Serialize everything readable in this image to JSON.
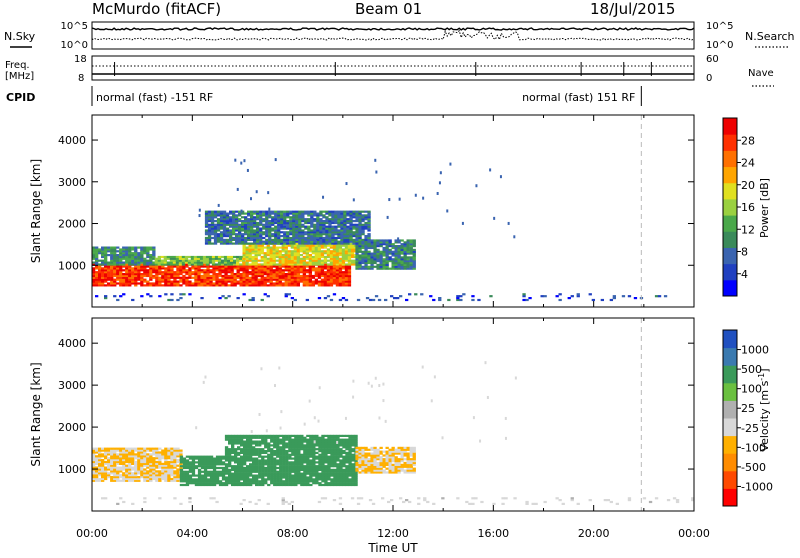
{
  "header": {
    "title": "McMurdo (fitACF)",
    "beam": "Beam 01",
    "date": "18/Jul/2015"
  },
  "status_panels": {
    "nsky_label": "N.Sky",
    "nsearch_label": "N.Search",
    "noise_ticks_left": [
      "10^5",
      "10^0"
    ],
    "noise_ticks_right": [
      "10^5",
      "10^0"
    ],
    "freq_label": "Freq.",
    "freq_unit": "[MHz]",
    "freq_ticks": [
      "18",
      "8"
    ],
    "nave_label": "Nave",
    "nave_ticks": [
      "60",
      "0"
    ],
    "cpid_label": "CPID",
    "cpid_segments": [
      {
        "text": "normal (fast) -151 RF",
        "start_hour": 0,
        "end_hour": 21.9
      },
      {
        "text": "normal (fast) 151 RF",
        "start_hour": 21.9,
        "end_hour": 24
      }
    ]
  },
  "x_axis": {
    "label": "Time UT",
    "ticks": [
      "00:00",
      "04:00",
      "08:00",
      "12:00",
      "16:00",
      "20:00",
      "00:00"
    ]
  },
  "colorbars": {
    "power": {
      "title": "Power [dB]",
      "ticks": [
        "28",
        "24",
        "20",
        "16",
        "12",
        "8",
        "4"
      ],
      "colors": [
        "#0000ff",
        "#2040c0",
        "#3a64b0",
        "#3a8a5a",
        "#4aa84a",
        "#9ad040",
        "#e0e020",
        "#ffa500",
        "#ff7000",
        "#ff3000",
        "#ee0000"
      ]
    },
    "velocity": {
      "title": "Velocity [m s",
      "title_sup": "-1",
      "title_end": "]",
      "ticks": [
        "1000",
        "500",
        "100",
        "25",
        "-25",
        "-100",
        "-500",
        "-1000"
      ],
      "colors": [
        "#ff0000",
        "#ff4a00",
        "#ff8c00",
        "#ffb000",
        "#d8d8d8",
        "#b0b0b0",
        "#6ac040",
        "#3a9a5a",
        "#3a7ab0",
        "#2050c0"
      ]
    }
  },
  "chart_data": [
    {
      "type": "heatmap",
      "title": "Power [dB]",
      "xlabel": "Time UT",
      "ylabel": "Slant Range [km]",
      "x_unit": "hours UT",
      "xlim": [
        0,
        24
      ],
      "ylim": [
        0,
        4600
      ],
      "y_ticks": [
        1000,
        2000,
        3000,
        4000
      ],
      "grid": false,
      "marker_line_hour": 21.9,
      "regions": [
        {
          "t0": 0.0,
          "t1": 10.2,
          "r0": 500,
          "r1": 1000,
          "value": 27
        },
        {
          "t0": 0.0,
          "t1": 2.5,
          "r0": 1000,
          "r1": 1450,
          "value": 10
        },
        {
          "t0": 2.5,
          "t1": 6.0,
          "r0": 1000,
          "r1": 1200,
          "value": 14
        },
        {
          "t0": 6.0,
          "t1": 10.5,
          "r0": 1000,
          "r1": 1500,
          "value": 18
        },
        {
          "t0": 10.5,
          "t1": 12.8,
          "r0": 900,
          "r1": 1600,
          "value": 9
        },
        {
          "t0": 4.5,
          "t1": 11.0,
          "r0": 1500,
          "r1": 2300,
          "value": 8
        },
        {
          "t0": 0.0,
          "t1": 24.0,
          "r0": 150,
          "r1": 300,
          "value": 5
        }
      ]
    },
    {
      "type": "heatmap",
      "title": "Velocity [m s-1]",
      "xlabel": "Time UT",
      "ylabel": "Slant Range [km]",
      "x_unit": "hours UT",
      "xlim": [
        0,
        24
      ],
      "ylim": [
        0,
        4600
      ],
      "y_ticks": [
        1000,
        2000,
        3000,
        4000
      ],
      "grid": false,
      "marker_line_hour": 21.9,
      "regions": [
        {
          "t0": 0.0,
          "t1": 3.5,
          "r0": 700,
          "r1": 1500,
          "value": -100
        },
        {
          "t0": 3.5,
          "t1": 5.3,
          "r0": 600,
          "r1": 1300,
          "value": 150
        },
        {
          "t0": 5.3,
          "t1": 10.5,
          "r0": 600,
          "r1": 1800,
          "value": 200
        },
        {
          "t0": 10.5,
          "t1": 12.8,
          "r0": 900,
          "r1": 1500,
          "value": -100
        },
        {
          "t0": 0.0,
          "t1": 24.0,
          "r0": 150,
          "r1": 300,
          "value": -60
        }
      ]
    }
  ]
}
